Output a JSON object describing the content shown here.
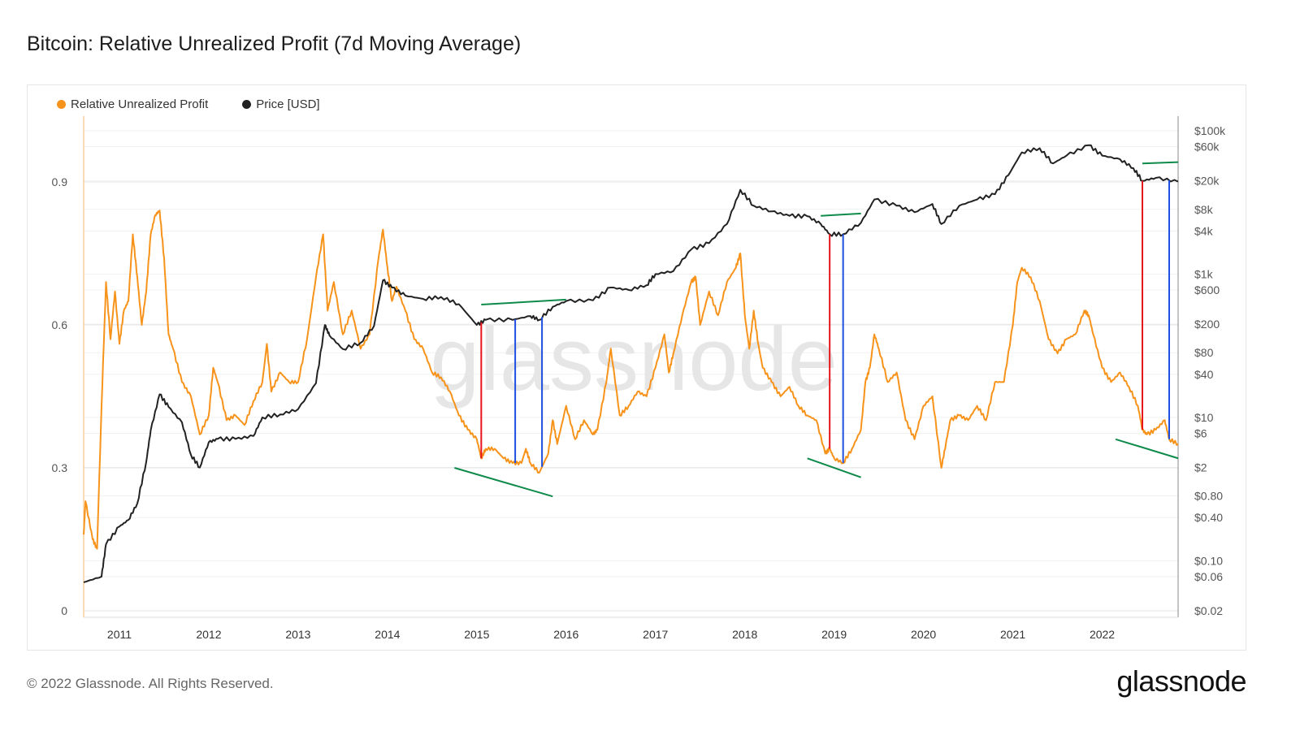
{
  "title": "Bitcoin: Relative Unrealized Profit (7d Moving Average)",
  "footer": "© 2022 Glassnode. All Rights Reserved.",
  "logo": "glassnode",
  "watermark": "glassnode",
  "chart_data": {
    "type": "line",
    "title": "Bitcoin: Relative Unrealized Profit (7d Moving Average)",
    "legend_position": "top-left",
    "grid": true,
    "x_range": [
      2010.6,
      2022.85
    ],
    "x_ticks": [
      "2011",
      "2012",
      "2013",
      "2014",
      "2015",
      "2016",
      "2017",
      "2018",
      "2019",
      "2020",
      "2021",
      "2022"
    ],
    "y_left": {
      "range": [
        0,
        1.05
      ],
      "ticks": [
        0,
        0.3,
        0.6,
        0.9
      ],
      "tick_labels": [
        "0",
        "0.3",
        "0.6",
        "0.9"
      ]
    },
    "y_right": {
      "scale": "log",
      "range": [
        0.02,
        100000
      ],
      "ticks": [
        100000,
        60000,
        20000,
        8000,
        4000,
        1000,
        600,
        200,
        80,
        40,
        10,
        6,
        2,
        0.8,
        0.4,
        0.1,
        0.06,
        0.02
      ],
      "tick_labels": [
        "$100k",
        "$60k",
        "$20k",
        "$8k",
        "$4k",
        "$1k",
        "$600",
        "$200",
        "$80",
        "$40",
        "$10",
        "$6",
        "$2",
        "$0.80",
        "$0.40",
        "$0.10",
        "$0.06",
        "$0.02"
      ]
    },
    "series": [
      {
        "name": "Relative Unrealized Profit",
        "axis": "left",
        "color": "#f7931a",
        "points": [
          [
            2010.6,
            0.16
          ],
          [
            2010.62,
            0.23
          ],
          [
            2010.7,
            0.15
          ],
          [
            2010.75,
            0.13
          ],
          [
            2010.8,
            0.43
          ],
          [
            2010.85,
            0.69
          ],
          [
            2010.9,
            0.57
          ],
          [
            2010.95,
            0.67
          ],
          [
            2011.0,
            0.56
          ],
          [
            2011.05,
            0.63
          ],
          [
            2011.1,
            0.65
          ],
          [
            2011.15,
            0.79
          ],
          [
            2011.2,
            0.7
          ],
          [
            2011.25,
            0.6
          ],
          [
            2011.3,
            0.67
          ],
          [
            2011.35,
            0.79
          ],
          [
            2011.4,
            0.83
          ],
          [
            2011.45,
            0.84
          ],
          [
            2011.5,
            0.74
          ],
          [
            2011.55,
            0.58
          ],
          [
            2011.6,
            0.55
          ],
          [
            2011.7,
            0.48
          ],
          [
            2011.8,
            0.45
          ],
          [
            2011.9,
            0.37
          ],
          [
            2012.0,
            0.41
          ],
          [
            2012.05,
            0.51
          ],
          [
            2012.1,
            0.48
          ],
          [
            2012.2,
            0.4
          ],
          [
            2012.3,
            0.41
          ],
          [
            2012.4,
            0.39
          ],
          [
            2012.5,
            0.44
          ],
          [
            2012.6,
            0.48
          ],
          [
            2012.65,
            0.56
          ],
          [
            2012.7,
            0.46
          ],
          [
            2012.8,
            0.5
          ],
          [
            2012.9,
            0.48
          ],
          [
            2013.0,
            0.48
          ],
          [
            2013.1,
            0.57
          ],
          [
            2013.2,
            0.7
          ],
          [
            2013.28,
            0.79
          ],
          [
            2013.33,
            0.63
          ],
          [
            2013.4,
            0.69
          ],
          [
            2013.5,
            0.58
          ],
          [
            2013.6,
            0.63
          ],
          [
            2013.7,
            0.55
          ],
          [
            2013.8,
            0.58
          ],
          [
            2013.9,
            0.74
          ],
          [
            2013.95,
            0.8
          ],
          [
            2014.0,
            0.72
          ],
          [
            2014.05,
            0.65
          ],
          [
            2014.1,
            0.68
          ],
          [
            2014.2,
            0.63
          ],
          [
            2014.3,
            0.57
          ],
          [
            2014.4,
            0.55
          ],
          [
            2014.5,
            0.5
          ],
          [
            2014.6,
            0.49
          ],
          [
            2014.7,
            0.46
          ],
          [
            2014.8,
            0.41
          ],
          [
            2014.9,
            0.38
          ],
          [
            2015.0,
            0.36
          ],
          [
            2015.05,
            0.32
          ],
          [
            2015.1,
            0.34
          ],
          [
            2015.2,
            0.34
          ],
          [
            2015.3,
            0.32
          ],
          [
            2015.4,
            0.31
          ],
          [
            2015.5,
            0.31
          ],
          [
            2015.55,
            0.34
          ],
          [
            2015.6,
            0.31
          ],
          [
            2015.7,
            0.29
          ],
          [
            2015.8,
            0.33
          ],
          [
            2015.85,
            0.4
          ],
          [
            2015.9,
            0.35
          ],
          [
            2016.0,
            0.43
          ],
          [
            2016.1,
            0.36
          ],
          [
            2016.2,
            0.4
          ],
          [
            2016.3,
            0.37
          ],
          [
            2016.35,
            0.38
          ],
          [
            2016.45,
            0.48
          ],
          [
            2016.5,
            0.55
          ],
          [
            2016.6,
            0.41
          ],
          [
            2016.7,
            0.43
          ],
          [
            2016.8,
            0.46
          ],
          [
            2016.9,
            0.45
          ],
          [
            2017.0,
            0.51
          ],
          [
            2017.1,
            0.58
          ],
          [
            2017.15,
            0.5
          ],
          [
            2017.2,
            0.54
          ],
          [
            2017.3,
            0.62
          ],
          [
            2017.4,
            0.69
          ],
          [
            2017.45,
            0.7
          ],
          [
            2017.5,
            0.6
          ],
          [
            2017.6,
            0.67
          ],
          [
            2017.7,
            0.62
          ],
          [
            2017.8,
            0.69
          ],
          [
            2017.9,
            0.72
          ],
          [
            2017.95,
            0.75
          ],
          [
            2018.0,
            0.62
          ],
          [
            2018.05,
            0.55
          ],
          [
            2018.1,
            0.63
          ],
          [
            2018.15,
            0.56
          ],
          [
            2018.2,
            0.51
          ],
          [
            2018.3,
            0.48
          ],
          [
            2018.4,
            0.45
          ],
          [
            2018.5,
            0.47
          ],
          [
            2018.6,
            0.43
          ],
          [
            2018.7,
            0.41
          ],
          [
            2018.8,
            0.4
          ],
          [
            2018.9,
            0.33
          ],
          [
            2018.95,
            0.34
          ],
          [
            2019.0,
            0.32
          ],
          [
            2019.1,
            0.31
          ],
          [
            2019.2,
            0.34
          ],
          [
            2019.3,
            0.38
          ],
          [
            2019.35,
            0.48
          ],
          [
            2019.4,
            0.51
          ],
          [
            2019.45,
            0.58
          ],
          [
            2019.5,
            0.55
          ],
          [
            2019.6,
            0.48
          ],
          [
            2019.7,
            0.5
          ],
          [
            2019.8,
            0.4
          ],
          [
            2019.9,
            0.36
          ],
          [
            2020.0,
            0.43
          ],
          [
            2020.1,
            0.45
          ],
          [
            2020.2,
            0.3
          ],
          [
            2020.25,
            0.35
          ],
          [
            2020.3,
            0.4
          ],
          [
            2020.4,
            0.41
          ],
          [
            2020.5,
            0.4
          ],
          [
            2020.6,
            0.43
          ],
          [
            2020.7,
            0.4
          ],
          [
            2020.8,
            0.48
          ],
          [
            2020.9,
            0.48
          ],
          [
            2021.0,
            0.6
          ],
          [
            2021.05,
            0.69
          ],
          [
            2021.1,
            0.72
          ],
          [
            2021.2,
            0.7
          ],
          [
            2021.3,
            0.65
          ],
          [
            2021.4,
            0.57
          ],
          [
            2021.5,
            0.54
          ],
          [
            2021.6,
            0.57
          ],
          [
            2021.7,
            0.58
          ],
          [
            2021.8,
            0.63
          ],
          [
            2021.85,
            0.62
          ],
          [
            2021.9,
            0.58
          ],
          [
            2022.0,
            0.51
          ],
          [
            2022.1,
            0.48
          ],
          [
            2022.2,
            0.5
          ],
          [
            2022.3,
            0.47
          ],
          [
            2022.4,
            0.43
          ],
          [
            2022.45,
            0.38
          ],
          [
            2022.5,
            0.37
          ],
          [
            2022.6,
            0.38
          ],
          [
            2022.7,
            0.4
          ],
          [
            2022.75,
            0.36
          ],
          [
            2022.85,
            0.35
          ]
        ]
      },
      {
        "name": "Price [USD]",
        "axis": "right",
        "color": "#222222",
        "points": [
          [
            2010.6,
            0.05
          ],
          [
            2010.8,
            0.06
          ],
          [
            2010.85,
            0.17
          ],
          [
            2011.0,
            0.3
          ],
          [
            2011.1,
            0.37
          ],
          [
            2011.2,
            0.63
          ],
          [
            2011.3,
            2.4
          ],
          [
            2011.35,
            6.6
          ],
          [
            2011.45,
            21
          ],
          [
            2011.55,
            14
          ],
          [
            2011.7,
            8.5
          ],
          [
            2011.8,
            3
          ],
          [
            2011.9,
            2
          ],
          [
            2012.0,
            4.5
          ],
          [
            2012.1,
            5
          ],
          [
            2012.3,
            5
          ],
          [
            2012.5,
            5.5
          ],
          [
            2012.6,
            10
          ],
          [
            2012.8,
            11
          ],
          [
            2013.0,
            13
          ],
          [
            2013.2,
            30
          ],
          [
            2013.3,
            195
          ],
          [
            2013.35,
            140
          ],
          [
            2013.5,
            90
          ],
          [
            2013.7,
            110
          ],
          [
            2013.85,
            190
          ],
          [
            2013.95,
            820
          ],
          [
            2014.05,
            650
          ],
          [
            2014.2,
            500
          ],
          [
            2014.4,
            450
          ],
          [
            2014.6,
            480
          ],
          [
            2014.8,
            380
          ],
          [
            2015.0,
            195
          ],
          [
            2015.1,
            230
          ],
          [
            2015.4,
            230
          ],
          [
            2015.6,
            260
          ],
          [
            2015.7,
            230
          ],
          [
            2015.85,
            350
          ],
          [
            2016.0,
            420
          ],
          [
            2016.3,
            430
          ],
          [
            2016.5,
            650
          ],
          [
            2016.7,
            600
          ],
          [
            2016.9,
            700
          ],
          [
            2017.0,
            1000
          ],
          [
            2017.2,
            1100
          ],
          [
            2017.4,
            2200
          ],
          [
            2017.6,
            2700
          ],
          [
            2017.8,
            5000
          ],
          [
            2017.95,
            15000
          ],
          [
            2018.1,
            9000
          ],
          [
            2018.3,
            7500
          ],
          [
            2018.5,
            6500
          ],
          [
            2018.7,
            6400
          ],
          [
            2018.85,
            5000
          ],
          [
            2018.95,
            3600
          ],
          [
            2019.1,
            3600
          ],
          [
            2019.3,
            5200
          ],
          [
            2019.45,
            11000
          ],
          [
            2019.7,
            9000
          ],
          [
            2019.9,
            7300
          ],
          [
            2020.1,
            9500
          ],
          [
            2020.2,
            5000
          ],
          [
            2020.4,
            9000
          ],
          [
            2020.6,
            11000
          ],
          [
            2020.8,
            13000
          ],
          [
            2020.95,
            24000
          ],
          [
            2021.1,
            50000
          ],
          [
            2021.3,
            57000
          ],
          [
            2021.45,
            35000
          ],
          [
            2021.6,
            45000
          ],
          [
            2021.85,
            63000
          ],
          [
            2022.0,
            45000
          ],
          [
            2022.2,
            40000
          ],
          [
            2022.35,
            30000
          ],
          [
            2022.45,
            20000
          ],
          [
            2022.6,
            22000
          ],
          [
            2022.85,
            19500
          ]
        ]
      }
    ],
    "annotations": {
      "vertical_lines": [
        {
          "x": 2015.05,
          "color": "#e8141c"
        },
        {
          "x": 2015.43,
          "color": "#1f4fe0"
        },
        {
          "x": 2015.73,
          "color": "#1f4fe0"
        },
        {
          "x": 2018.95,
          "color": "#e8141c"
        },
        {
          "x": 2019.1,
          "color": "#1f4fe0"
        },
        {
          "x": 2022.45,
          "color": "#e8141c"
        },
        {
          "x": 2022.75,
          "color": "#1f4fe0"
        }
      ],
      "trend_lines": [
        {
          "axis": "left",
          "from": [
            2014.75,
            0.3
          ],
          "to": [
            2015.85,
            0.24
          ],
          "color": "#0e8a4a"
        },
        {
          "axis": "right",
          "from": [
            2015.05,
            375
          ],
          "to": [
            2016.0,
            440
          ],
          "color": "#0e8a4a"
        },
        {
          "axis": "left",
          "from": [
            2018.7,
            0.32
          ],
          "to": [
            2019.3,
            0.28
          ],
          "color": "#0e8a4a"
        },
        {
          "axis": "right",
          "from": [
            2018.85,
            6500
          ],
          "to": [
            2019.3,
            7000
          ],
          "color": "#0e8a4a"
        },
        {
          "axis": "left",
          "from": [
            2022.15,
            0.36
          ],
          "to": [
            2022.85,
            0.32
          ],
          "color": "#0e8a4a"
        },
        {
          "axis": "right",
          "from": [
            2022.45,
            35000
          ],
          "to": [
            2022.85,
            36500
          ],
          "color": "#0e8a4a"
        }
      ]
    }
  }
}
